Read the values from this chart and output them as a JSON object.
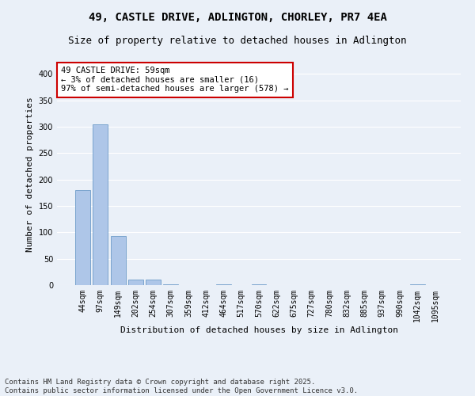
{
  "title_line1": "49, CASTLE DRIVE, ADLINGTON, CHORLEY, PR7 4EA",
  "title_line2": "Size of property relative to detached houses in Adlington",
  "xlabel": "Distribution of detached houses by size in Adlington",
  "ylabel": "Number of detached properties",
  "categories": [
    "44sqm",
    "97sqm",
    "149sqm",
    "202sqm",
    "254sqm",
    "307sqm",
    "359sqm",
    "412sqm",
    "464sqm",
    "517sqm",
    "570sqm",
    "622sqm",
    "675sqm",
    "727sqm",
    "780sqm",
    "832sqm",
    "885sqm",
    "937sqm",
    "990sqm",
    "1042sqm",
    "1095sqm"
  ],
  "values": [
    180,
    305,
    93,
    10,
    10,
    2,
    0,
    0,
    2,
    0,
    2,
    0,
    0,
    0,
    0,
    0,
    0,
    0,
    0,
    2,
    0
  ],
  "bar_color": "#aec6e8",
  "bar_edge_color": "#5a8fc0",
  "bg_color": "#eaf0f8",
  "grid_color": "#ffffff",
  "annotation_text": "49 CASTLE DRIVE: 59sqm\n← 3% of detached houses are smaller (16)\n97% of semi-detached houses are larger (578) →",
  "annotation_box_color": "#ffffff",
  "annotation_box_edge_color": "#cc0000",
  "ylim": [
    0,
    420
  ],
  "yticks": [
    0,
    50,
    100,
    150,
    200,
    250,
    300,
    350,
    400
  ],
  "footer_line1": "Contains HM Land Registry data © Crown copyright and database right 2025.",
  "footer_line2": "Contains public sector information licensed under the Open Government Licence v3.0.",
  "title_fontsize": 10,
  "subtitle_fontsize": 9,
  "axis_label_fontsize": 8,
  "tick_fontsize": 7,
  "annotation_fontsize": 7.5,
  "footer_fontsize": 6.5
}
